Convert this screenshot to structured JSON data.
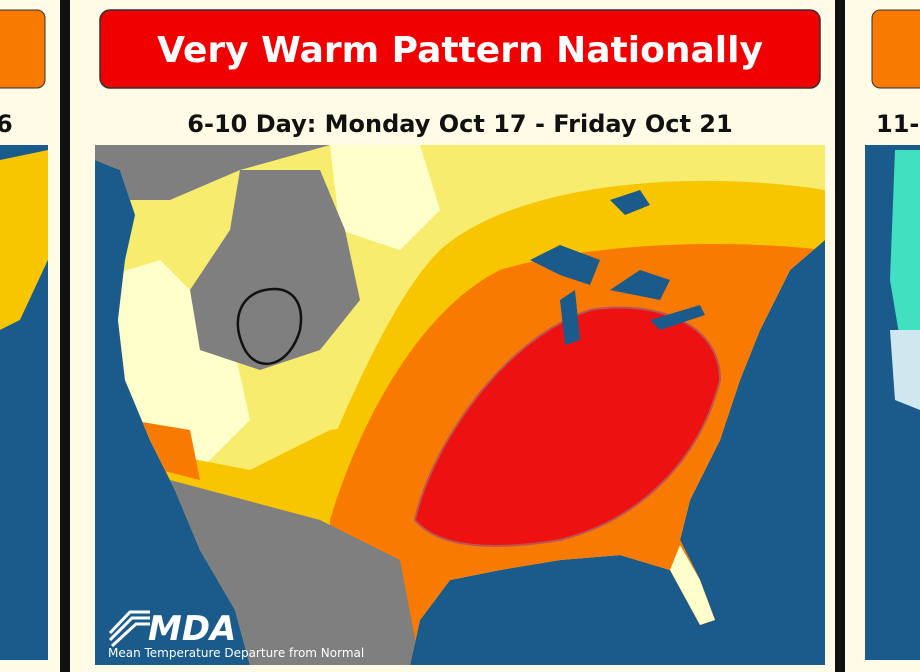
{
  "header": {
    "title": "Very Warm Pattern Nationally",
    "subtitle": "6-10 Day: Monday Oct 17 - Friday Oct 21"
  },
  "map": {
    "logo": "MDA",
    "caption": "Mean Temperature Departure from Normal"
  },
  "left_panel": {
    "subtitle": "6"
  },
  "right_panel": {
    "subtitle": "11-"
  }
}
